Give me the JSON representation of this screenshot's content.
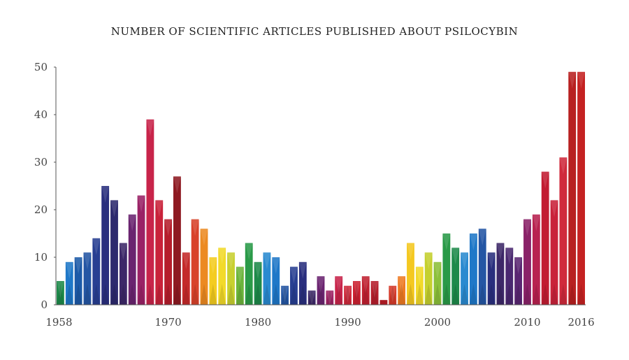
{
  "chart_data": {
    "type": "bar",
    "title": "NUMBER OF SCIENTIFIC ARTICLES PUBLISHED ABOUT PSILOCYBIN",
    "xlabel": "",
    "ylabel": "",
    "ylim": [
      0,
      50
    ],
    "yticks": [
      0,
      10,
      20,
      30,
      40,
      50
    ],
    "xtick_labels": [
      {
        "year": 1958,
        "label": "1958"
      },
      {
        "year": 1970,
        "label": "1970"
      },
      {
        "year": 1980,
        "label": "1980"
      },
      {
        "year": 1990,
        "label": "1990"
      },
      {
        "year": 2000,
        "label": "2000"
      },
      {
        "year": 2010,
        "label": "2010"
      },
      {
        "year": 2016,
        "label": "2016"
      }
    ],
    "categories": [
      1958,
      1959,
      1960,
      1961,
      1962,
      1963,
      1964,
      1965,
      1966,
      1967,
      1968,
      1969,
      1970,
      1971,
      1972,
      1973,
      1974,
      1975,
      1976,
      1977,
      1978,
      1979,
      1980,
      1981,
      1982,
      1983,
      1984,
      1985,
      1986,
      1987,
      1988,
      1989,
      1990,
      1991,
      1992,
      1993,
      1994,
      1995,
      1996,
      1997,
      1998,
      1999,
      2000,
      2001,
      2002,
      2003,
      2004,
      2005,
      2006,
      2007,
      2008,
      2009,
      2010,
      2011,
      2012,
      2013,
      2014,
      2015,
      2016
    ],
    "values": [
      5,
      9,
      10,
      11,
      14,
      25,
      22,
      13,
      19,
      23,
      39,
      22,
      18,
      27,
      11,
      18,
      16,
      10,
      12,
      11,
      8,
      13,
      9,
      11,
      10,
      4,
      8,
      9,
      3,
      6,
      3,
      6,
      4,
      5,
      6,
      5,
      1,
      4,
      6,
      13,
      8,
      11,
      9,
      15,
      12,
      11,
      15,
      16,
      11,
      13,
      12,
      10,
      18,
      19,
      28,
      22,
      31,
      49,
      49
    ],
    "colors": [
      "#1e8a4a",
      "#1f78c8",
      "#1c5aa8",
      "#2456a4",
      "#283f92",
      "#2a2f7e",
      "#2d2a6e",
      "#3d2868",
      "#6a2470",
      "#9a2266",
      "#c8244a",
      "#c9223a",
      "#b61e2c",
      "#8e1a22",
      "#c42a2a",
      "#d8422a",
      "#ec8a22",
      "#f4cc20",
      "#f2da2a",
      "#c8d030",
      "#6cb43c",
      "#2a9a48",
      "#1e8a4a",
      "#2a8ad0",
      "#1f78c8",
      "#2456a4",
      "#283f92",
      "#2a2f7e",
      "#3d2868",
      "#6a2470",
      "#a02466",
      "#c8244a",
      "#d02a3c",
      "#cc2232",
      "#c02030",
      "#b61e2c",
      "#a81a22",
      "#d63a2a",
      "#ee7a22",
      "#f4c820",
      "#f2da2a",
      "#c4d02e",
      "#8cc03a",
      "#2a9a48",
      "#1e8a4a",
      "#2a8ad0",
      "#1f78c8",
      "#2456a4",
      "#2a2f7e",
      "#3d2868",
      "#4a2870",
      "#5a2672",
      "#8a2268",
      "#b82250",
      "#c21c32",
      "#c9223a",
      "#d02a3c",
      "#b82020",
      "#c42222"
    ]
  }
}
